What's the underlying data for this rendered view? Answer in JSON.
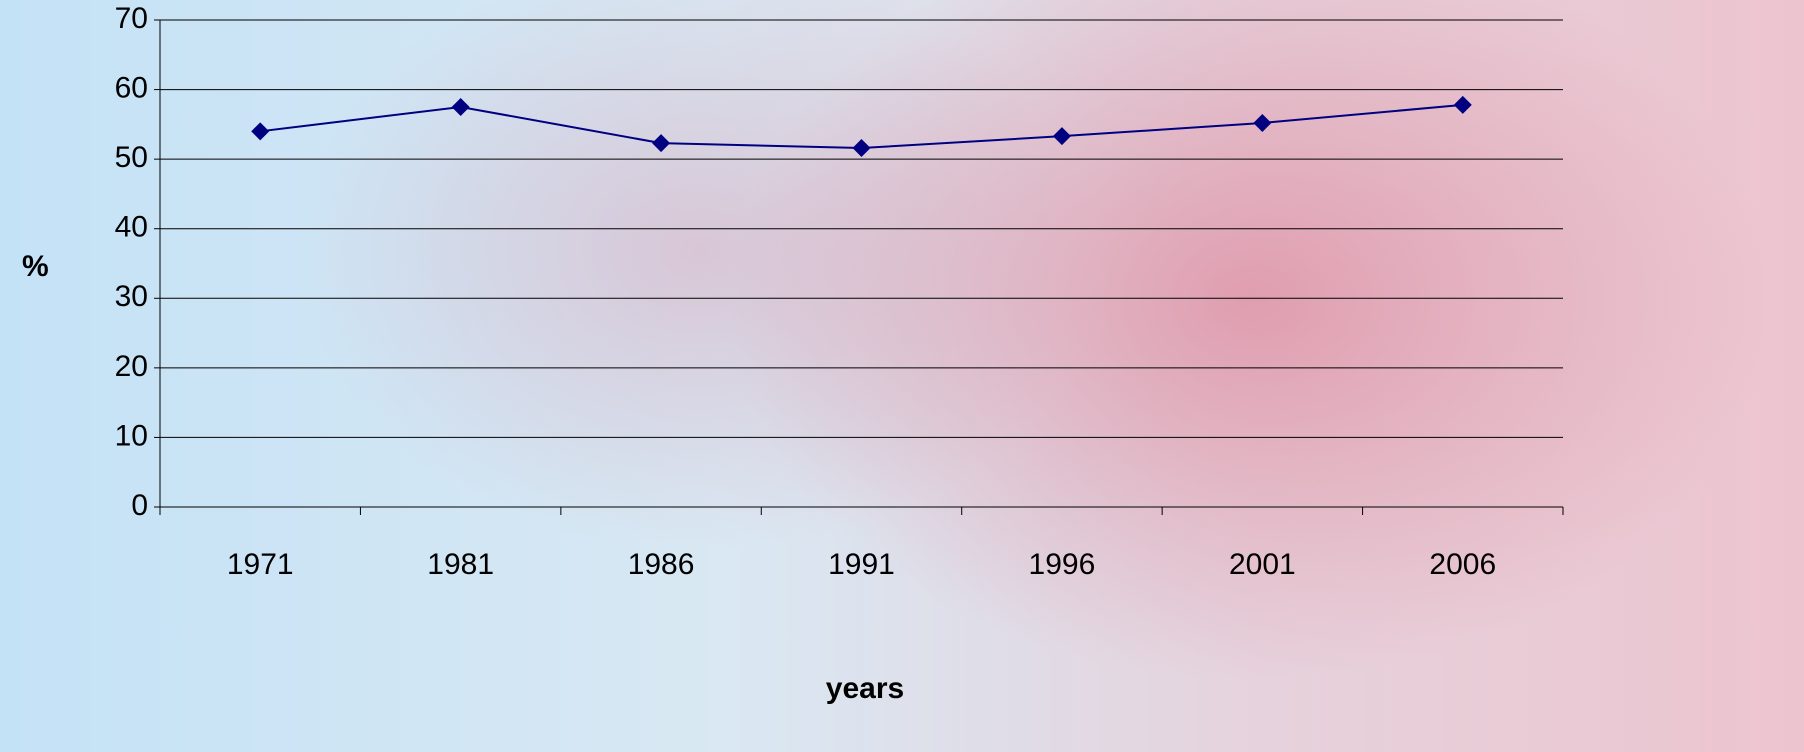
{
  "chart_data": {
    "type": "line",
    "categories": [
      "1971",
      "1981",
      "1986",
      "1991",
      "1996",
      "2001",
      "2006"
    ],
    "series": [
      {
        "name": null,
        "color": "#000080",
        "values": [
          54.0,
          57.5,
          52.3,
          51.6,
          53.3,
          55.2,
          57.8
        ]
      }
    ],
    "ylim": [
      0,
      70
    ],
    "yticks": [
      0,
      10,
      20,
      30,
      40,
      50,
      60,
      70
    ],
    "y_label": "%",
    "x_label": "years",
    "grid": true
  }
}
